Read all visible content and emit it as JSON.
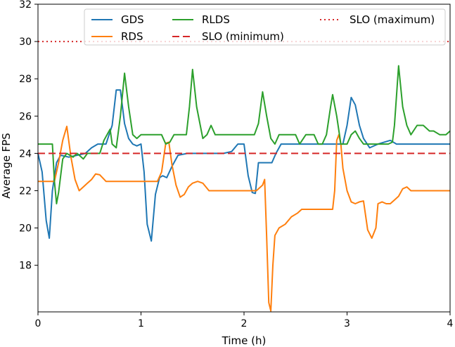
{
  "chart_data": {
    "type": "line",
    "xlabel": "Time (h)",
    "ylabel": "Average FPS",
    "xlim": [
      0,
      4
    ],
    "ylim": [
      15.5,
      32
    ],
    "xticks": [
      0,
      1,
      2,
      3,
      4
    ],
    "yticks": [
      18,
      20,
      22,
      24,
      26,
      28,
      30,
      32
    ],
    "grid": false,
    "legend_position": "top",
    "series": [
      {
        "name": "GDS",
        "color": "#1f77b4",
        "style": "solid",
        "points": [
          [
            0,
            24.0
          ],
          [
            0.04,
            23.0
          ],
          [
            0.08,
            20.4
          ],
          [
            0.11,
            19.45
          ],
          [
            0.14,
            22.0
          ],
          [
            0.18,
            23.5
          ],
          [
            0.22,
            23.9
          ],
          [
            0.3,
            23.8
          ],
          [
            0.38,
            23.9
          ],
          [
            0.46,
            24.0
          ],
          [
            0.52,
            24.3
          ],
          [
            0.58,
            24.5
          ],
          [
            0.66,
            24.5
          ],
          [
            0.72,
            25.5
          ],
          [
            0.76,
            27.4
          ],
          [
            0.8,
            27.4
          ],
          [
            0.84,
            25.6
          ],
          [
            0.88,
            24.8
          ],
          [
            0.92,
            24.5
          ],
          [
            0.96,
            24.4
          ],
          [
            1.0,
            24.5
          ],
          [
            1.03,
            23.0
          ],
          [
            1.06,
            20.2
          ],
          [
            1.1,
            19.3
          ],
          [
            1.14,
            21.8
          ],
          [
            1.18,
            22.7
          ],
          [
            1.21,
            22.8
          ],
          [
            1.25,
            22.7
          ],
          [
            1.3,
            23.3
          ],
          [
            1.36,
            23.9
          ],
          [
            1.45,
            24.0
          ],
          [
            1.6,
            24.0
          ],
          [
            1.8,
            24.0
          ],
          [
            1.88,
            24.1
          ],
          [
            1.94,
            24.5
          ],
          [
            2.0,
            24.5
          ],
          [
            2.04,
            22.8
          ],
          [
            2.08,
            21.9
          ],
          [
            2.11,
            21.85
          ],
          [
            2.14,
            23.5
          ],
          [
            2.2,
            23.5
          ],
          [
            2.27,
            23.5
          ],
          [
            2.31,
            24.0
          ],
          [
            2.36,
            24.5
          ],
          [
            2.5,
            24.5
          ],
          [
            2.7,
            24.5
          ],
          [
            2.96,
            24.5
          ],
          [
            3.0,
            25.5
          ],
          [
            3.04,
            27.0
          ],
          [
            3.08,
            26.6
          ],
          [
            3.12,
            25.5
          ],
          [
            3.16,
            24.8
          ],
          [
            3.22,
            24.3
          ],
          [
            3.3,
            24.5
          ],
          [
            3.36,
            24.6
          ],
          [
            3.42,
            24.7
          ],
          [
            3.48,
            24.5
          ],
          [
            3.6,
            24.5
          ],
          [
            3.8,
            24.5
          ],
          [
            4.0,
            24.5
          ]
        ]
      },
      {
        "name": "RDS",
        "color": "#ff7f0e",
        "style": "solid",
        "points": [
          [
            0,
            22.5
          ],
          [
            0.1,
            22.5
          ],
          [
            0.16,
            22.5
          ],
          [
            0.2,
            23.5
          ],
          [
            0.24,
            24.7
          ],
          [
            0.28,
            25.45
          ],
          [
            0.32,
            23.8
          ],
          [
            0.36,
            22.6
          ],
          [
            0.4,
            22.0
          ],
          [
            0.44,
            22.2
          ],
          [
            0.48,
            22.4
          ],
          [
            0.52,
            22.6
          ],
          [
            0.56,
            22.9
          ],
          [
            0.6,
            22.85
          ],
          [
            0.66,
            22.5
          ],
          [
            0.8,
            22.5
          ],
          [
            1.0,
            22.5
          ],
          [
            1.16,
            22.5
          ],
          [
            1.2,
            23.0
          ],
          [
            1.24,
            24.55
          ],
          [
            1.27,
            24.6
          ],
          [
            1.3,
            23.4
          ],
          [
            1.34,
            22.3
          ],
          [
            1.38,
            21.65
          ],
          [
            1.42,
            21.8
          ],
          [
            1.46,
            22.2
          ],
          [
            1.5,
            22.4
          ],
          [
            1.55,
            22.5
          ],
          [
            1.6,
            22.4
          ],
          [
            1.66,
            22.0
          ],
          [
            1.8,
            22.0
          ],
          [
            2.0,
            22.0
          ],
          [
            2.12,
            22.0
          ],
          [
            2.18,
            22.3
          ],
          [
            2.2,
            22.6
          ],
          [
            2.22,
            19.5
          ],
          [
            2.24,
            16.0
          ],
          [
            2.26,
            15.55
          ],
          [
            2.28,
            18.0
          ],
          [
            2.3,
            19.6
          ],
          [
            2.34,
            20.0
          ],
          [
            2.4,
            20.2
          ],
          [
            2.46,
            20.6
          ],
          [
            2.52,
            20.8
          ],
          [
            2.56,
            21.0
          ],
          [
            2.7,
            21.0
          ],
          [
            2.86,
            21.0
          ],
          [
            2.88,
            22.0
          ],
          [
            2.9,
            24.7
          ],
          [
            2.92,
            25.0
          ],
          [
            2.94,
            24.5
          ],
          [
            2.96,
            23.2
          ],
          [
            3.0,
            22.0
          ],
          [
            3.04,
            21.4
          ],
          [
            3.08,
            21.3
          ],
          [
            3.12,
            21.4
          ],
          [
            3.16,
            21.45
          ],
          [
            3.2,
            19.9
          ],
          [
            3.24,
            19.45
          ],
          [
            3.28,
            20.0
          ],
          [
            3.3,
            21.3
          ],
          [
            3.34,
            21.4
          ],
          [
            3.38,
            21.3
          ],
          [
            3.42,
            21.3
          ],
          [
            3.46,
            21.5
          ],
          [
            3.5,
            21.7
          ],
          [
            3.54,
            22.1
          ],
          [
            3.58,
            22.2
          ],
          [
            3.62,
            22.0
          ],
          [
            3.7,
            22.0
          ],
          [
            3.85,
            22.0
          ],
          [
            4.0,
            22.0
          ]
        ]
      },
      {
        "name": "RLDS",
        "color": "#2ca02c",
        "style": "solid",
        "points": [
          [
            0,
            24.5
          ],
          [
            0.14,
            24.5
          ],
          [
            0.16,
            22.5
          ],
          [
            0.18,
            21.3
          ],
          [
            0.2,
            21.9
          ],
          [
            0.24,
            23.7
          ],
          [
            0.28,
            24.0
          ],
          [
            0.34,
            23.8
          ],
          [
            0.38,
            24.0
          ],
          [
            0.44,
            23.7
          ],
          [
            0.48,
            24.0
          ],
          [
            0.56,
            24.0
          ],
          [
            0.6,
            24.0
          ],
          [
            0.64,
            24.7
          ],
          [
            0.7,
            25.3
          ],
          [
            0.72,
            24.5
          ],
          [
            0.76,
            24.3
          ],
          [
            0.8,
            26.0
          ],
          [
            0.84,
            28.3
          ],
          [
            0.88,
            26.5
          ],
          [
            0.92,
            25.0
          ],
          [
            0.96,
            24.8
          ],
          [
            1.0,
            25.0
          ],
          [
            1.1,
            25.0
          ],
          [
            1.2,
            25.0
          ],
          [
            1.24,
            24.5
          ],
          [
            1.28,
            24.6
          ],
          [
            1.32,
            25.0
          ],
          [
            1.44,
            25.0
          ],
          [
            1.47,
            26.5
          ],
          [
            1.5,
            28.5
          ],
          [
            1.54,
            26.5
          ],
          [
            1.6,
            24.8
          ],
          [
            1.64,
            25.0
          ],
          [
            1.68,
            25.5
          ],
          [
            1.72,
            25.0
          ],
          [
            1.8,
            25.0
          ],
          [
            2.0,
            25.0
          ],
          [
            2.1,
            25.0
          ],
          [
            2.14,
            25.6
          ],
          [
            2.18,
            27.3
          ],
          [
            2.22,
            26.0
          ],
          [
            2.26,
            24.8
          ],
          [
            2.3,
            24.5
          ],
          [
            2.34,
            25.0
          ],
          [
            2.5,
            25.0
          ],
          [
            2.54,
            24.5
          ],
          [
            2.6,
            25.0
          ],
          [
            2.68,
            25.0
          ],
          [
            2.72,
            24.5
          ],
          [
            2.76,
            24.5
          ],
          [
            2.8,
            25.0
          ],
          [
            2.84,
            26.5
          ],
          [
            2.86,
            27.15
          ],
          [
            2.9,
            26.0
          ],
          [
            2.94,
            24.5
          ],
          [
            3.0,
            24.5
          ],
          [
            3.04,
            25.0
          ],
          [
            3.08,
            25.2
          ],
          [
            3.12,
            24.8
          ],
          [
            3.16,
            24.5
          ],
          [
            3.4,
            24.5
          ],
          [
            3.44,
            24.6
          ],
          [
            3.46,
            25.5
          ],
          [
            3.5,
            28.7
          ],
          [
            3.54,
            26.5
          ],
          [
            3.58,
            25.5
          ],
          [
            3.62,
            25.0
          ],
          [
            3.68,
            25.5
          ],
          [
            3.74,
            25.5
          ],
          [
            3.8,
            25.2
          ],
          [
            3.84,
            25.2
          ],
          [
            3.9,
            25.0
          ],
          [
            3.96,
            25.0
          ],
          [
            4.0,
            25.2
          ]
        ]
      },
      {
        "name": "SLO (minimum)",
        "color": "#d62728",
        "style": "dashed",
        "points": [
          [
            0,
            24
          ],
          [
            4,
            24
          ]
        ]
      },
      {
        "name": "SLO (maximum)",
        "color": "#d62728",
        "style": "dotted",
        "points": [
          [
            0,
            30
          ],
          [
            4,
            30
          ]
        ]
      }
    ]
  }
}
